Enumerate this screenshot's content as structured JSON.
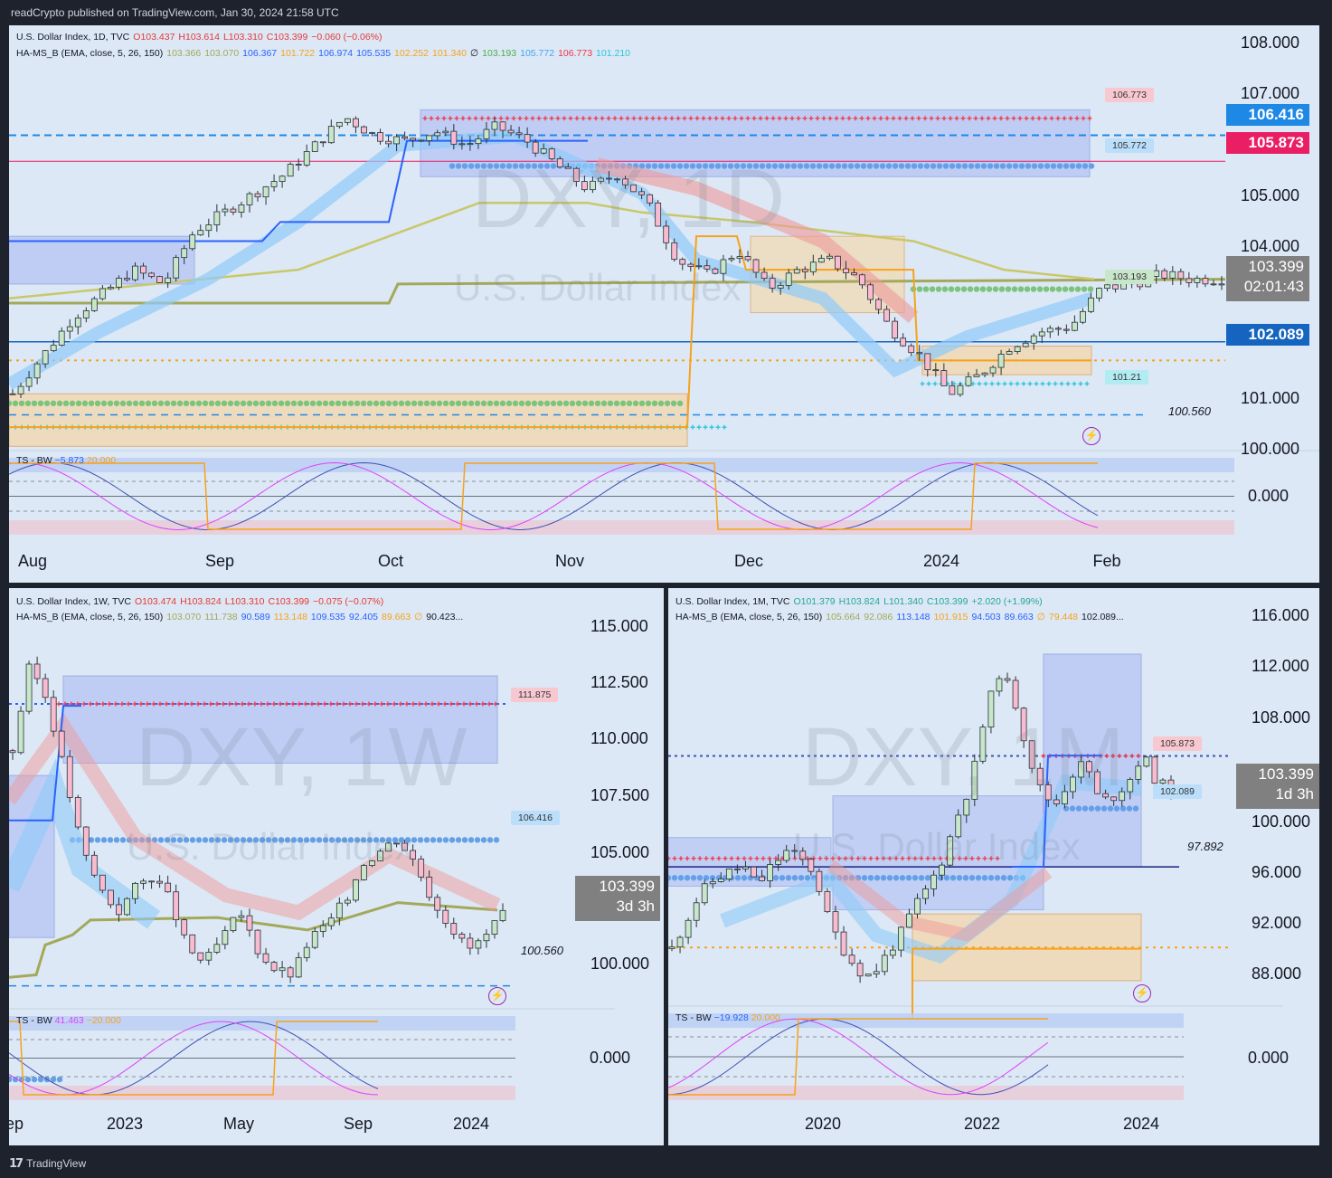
{
  "header": "readCrypto published on TradingView.com, Jan 30, 2024 21:58 UTC",
  "footer": "TradingView",
  "colors": {
    "bg": "#dce8f5",
    "frame": "#1e222d",
    "up": "#b2dfdb",
    "down": "#f8bbd0",
    "ema_blue": "#2962ff",
    "ema_orange": "#f7a21b",
    "ema_olive": "#a3a85a",
    "red": "#f23645",
    "green": "#7cc47c",
    "cyan": "#26c6da",
    "lightblue": "#90caf9",
    "magenta": "#e040fb"
  },
  "panels": {
    "daily": {
      "watermark": "DXY, 1D",
      "watermark_sub": "U.S. Dollar Index",
      "info1": {
        "symbol": "U.S. Dollar Index, 1D, TVC",
        "o": "O103.437",
        "h": "H103.614",
        "l": "L103.310",
        "c": "C103.399",
        "chg": "−0.060 (−0.06%)"
      },
      "info2": {
        "name": "HA-MS_B (EMA, close, 5, 26, 150)",
        "v": [
          "103.366",
          "103.070",
          "106.367",
          "101.722",
          "106.974",
          "105.535",
          "102.252",
          "101.340",
          "∅",
          "103.193",
          "105.772",
          "106.773",
          "101.210"
        ]
      },
      "price_axis": [
        "108.000",
        "107.000",
        "105.000",
        "104.000",
        "101.000",
        "100.000"
      ],
      "badges": [
        {
          "text": "106.416",
          "color": "#1e88e5"
        },
        {
          "text": "105.873",
          "color": "#e91e63"
        },
        {
          "text": "102.089",
          "color": "#1565c0"
        }
      ],
      "current": {
        "price": "103.399",
        "countdown": "02:01:43"
      },
      "tags": [
        "106.773",
        "105.772",
        "103.193",
        "101.21"
      ],
      "level_label": "100.560",
      "x_axis": [
        "Aug",
        "Sep",
        "Oct",
        "Nov",
        "Dec",
        "2024",
        "Feb"
      ],
      "osc": {
        "name": "TS - BW",
        "v1": "−5.873",
        "v2": "20.000",
        "zero": "0.000"
      }
    },
    "weekly": {
      "watermark": "DXY, 1W",
      "watermark_sub": "U.S. Dollar Index",
      "info1": {
        "symbol": "U.S. Dollar Index, 1W, TVC",
        "o": "O103.474",
        "h": "H103.824",
        "l": "L103.310",
        "c": "C103.399",
        "chg": "−0.075 (−0.07%)"
      },
      "info2": {
        "name": "HA-MS_B (EMA, close, 5, 26, 150)",
        "v": [
          "103.070",
          "111.738",
          "90.589",
          "113.148",
          "109.535",
          "92.405",
          "89.663",
          "∅",
          "90.423..."
        ]
      },
      "price_axis": [
        "115.000",
        "112.500",
        "110.000",
        "107.500",
        "105.000",
        "100.000"
      ],
      "current": {
        "price": "103.399",
        "countdown": "3d 3h"
      },
      "tags": [
        "111.875",
        "106.416"
      ],
      "level_label": "100.560",
      "x_axis": [
        "ep",
        "2023",
        "May",
        "Sep",
        "2024"
      ],
      "osc": {
        "name": "TS - BW",
        "v1": "41.463",
        "v2": "−20.000",
        "zero": "0.000"
      }
    },
    "monthly": {
      "watermark": "DXY, 1M",
      "watermark_sub": "U.S. Dollar Index",
      "info1": {
        "symbol": "U.S. Dollar Index, 1M, TVC",
        "o": "O101.379",
        "h": "H103.824",
        "l": "L101.340",
        "c": "C103.399",
        "chg": "+2.020 (+1.99%)"
      },
      "info2": {
        "name": "HA-MS_B (EMA, close, 5, 26, 150)",
        "v": [
          "105.664",
          "92.086",
          "113.148",
          "101.915",
          "94.503",
          "89.663",
          "∅",
          "79.448",
          "102.089..."
        ]
      },
      "price_axis": [
        "116.000",
        "112.000",
        "108.000",
        "100.000",
        "96.000",
        "92.000",
        "88.000"
      ],
      "current": {
        "price": "103.399",
        "countdown": "1d 3h"
      },
      "tags": [
        "105.873",
        "102.089"
      ],
      "level_label": "97.892",
      "x_axis": [
        "2020",
        "2022",
        "2024"
      ],
      "osc": {
        "name": "TS - BW",
        "v1": "−19.928",
        "v2": "20.000",
        "zero": "0.000"
      }
    }
  },
  "chart_data": [
    {
      "type": "candlestick",
      "title": "U.S. Dollar Index, 1D, TVC",
      "ylim": [
        100,
        108
      ],
      "x": [
        "Aug",
        "Sep",
        "Oct",
        "Nov",
        "Dec",
        "2024",
        "Feb"
      ],
      "close_path": [
        101.0,
        101.8,
        102.6,
        103.1,
        103.6,
        103.3,
        104.4,
        104.8,
        105.2,
        105.6,
        106.2,
        106.8,
        106.4,
        106.3,
        106.5,
        106.2,
        106.6,
        106.3,
        105.8,
        105.3,
        105.6,
        105.0,
        103.8,
        103.5,
        104.0,
        103.2,
        103.6,
        103.8,
        103.4,
        102.4,
        101.8,
        101.0,
        101.4,
        102.0,
        102.3,
        102.4,
        103.2,
        103.3,
        103.5,
        103.4,
        103.4
      ],
      "levels": [
        106.773,
        106.416,
        105.873,
        105.772,
        103.193,
        102.089,
        101.21,
        100.56
      ]
    },
    {
      "type": "candlestick",
      "title": "U.S. Dollar Index, 1W, TVC",
      "ylim": [
        100,
        115
      ],
      "x": [
        "2023",
        "May",
        "Sep",
        "2024"
      ],
      "close_path": [
        110.0,
        113.5,
        112.0,
        109.0,
        106.0,
        104.5,
        103.5,
        104.5,
        105.0,
        104.0,
        102.0,
        101.5,
        102.5,
        103.5,
        102.0,
        101.2,
        101.0,
        102.5,
        103.0,
        104.0,
        105.5,
        106.0,
        106.5,
        105.5,
        104.0,
        103.0,
        102.0,
        102.5,
        103.4
      ],
      "levels": [
        111.875,
        106.416,
        100.56
      ]
    },
    {
      "type": "candlestick",
      "title": "U.S. Dollar Index, 1M, TVC",
      "ylim": [
        88,
        116
      ],
      "x": [
        "2020",
        "2022",
        "2024"
      ],
      "close_path": [
        92.0,
        94.0,
        96.0,
        97.0,
        97.5,
        98.0,
        96.5,
        98.0,
        99.0,
        98.5,
        97.5,
        94.0,
        92.0,
        90.5,
        90.0,
        91.5,
        93.0,
        95.0,
        96.5,
        98.5,
        101.5,
        104.0,
        109.0,
        112.0,
        110.0,
        106.0,
        103.0,
        102.5,
        104.5,
        105.5,
        102.5,
        103.0,
        104.0,
        106.0,
        104.0,
        103.4
      ],
      "levels": [
        105.873,
        102.089,
        97.892
      ]
    }
  ]
}
